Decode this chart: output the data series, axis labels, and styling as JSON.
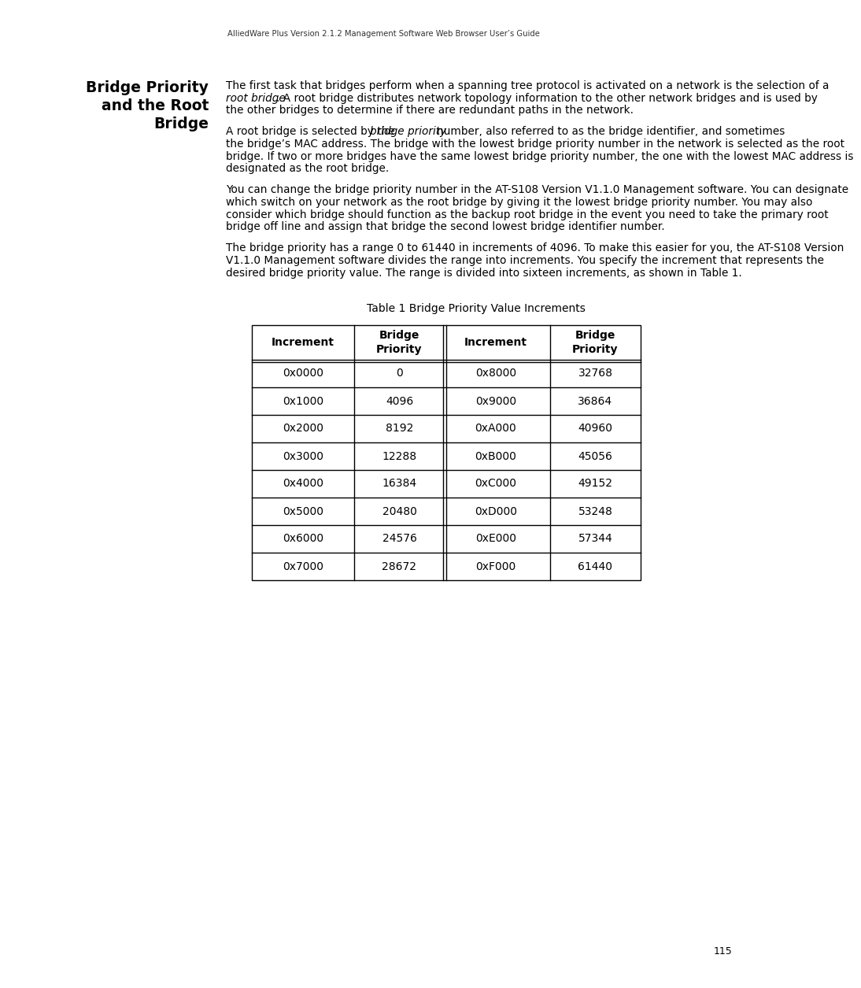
{
  "header_text": "AlliedWare Plus Version 2.1.2 Management Software Web Browser User’s Guide",
  "page_number": "115",
  "left_heading_lines": [
    "Bridge Priority",
    "and the Root",
    "Bridge"
  ],
  "para1_parts": [
    {
      "text": "The first task that bridges perform when a spanning tree protocol is activated on a network is the selection of a ",
      "italic": false
    },
    {
      "text": "root bridge",
      "italic": true
    },
    {
      "text": ". A root bridge distributes network topology information to the other network bridges and is used by the other bridges to determine if there are redundant paths in the network.",
      "italic": false
    }
  ],
  "para2_parts": [
    {
      "text": "A root bridge is selected by the ",
      "italic": false
    },
    {
      "text": "bridge priority",
      "italic": true
    },
    {
      "text": " number, also referred to as the bridge identifier, and sometimes the bridge’s MAC address. The bridge with the lowest bridge priority number in the network is selected as the root bridge. If two or more bridges have the same lowest bridge priority number, the one with the lowest MAC address is designated as the root bridge.",
      "italic": false
    }
  ],
  "para3": "You can change the bridge priority number in the AT-S108 Version V1.1.0 Management software. You can designate which switch on your network as the root bridge by giving it the lowest bridge priority number. You may also consider which bridge should function as the backup root bridge in the event you need to take the primary root bridge off line and assign that bridge the second lowest bridge identifier number.",
  "para4": "The bridge priority has a range 0 to 61440 in increments of 4096. To make this easier for you, the AT-S108 Version V1.1.0 Management software divides the range into increments. You specify the increment that represents the desired bridge priority value. The range is divided into sixteen increments, as shown in Table 1.",
  "table_title": "Table 1 Bridge Priority Value Increments",
  "col_headers": [
    "Increment",
    "Bridge\nPriority",
    "Increment",
    "Bridge\nPriority"
  ],
  "table_data": [
    [
      "0x0000",
      "0",
      "0x8000",
      "32768"
    ],
    [
      "0x1000",
      "4096",
      "0x9000",
      "36864"
    ],
    [
      "0x2000",
      "8192",
      "0xA000",
      "40960"
    ],
    [
      "0x3000",
      "12288",
      "0xB000",
      "45056"
    ],
    [
      "0x4000",
      "16384",
      "0xC000",
      "49152"
    ],
    [
      "0x5000",
      "20480",
      "0xD000",
      "53248"
    ],
    [
      "0x6000",
      "24576",
      "0xE000",
      "57344"
    ],
    [
      "0x7000",
      "28672",
      "0xF000",
      "61440"
    ]
  ],
  "bg_color": "#ffffff",
  "text_color": "#000000"
}
